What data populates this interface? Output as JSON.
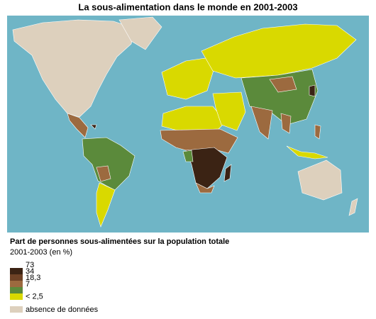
{
  "title": "La sous-alimentation dans le monde en 2001-2003",
  "legend": {
    "title": "Part de personnes sous-alimentées sur la population totale",
    "subtitle": "2001-2003 (en %)",
    "swatch_colors": [
      "#3b2314",
      "#6e4226",
      "#9c6a3f",
      "#5b8a3b",
      "#d9d900"
    ],
    "labels": [
      "73",
      "34",
      "18,3",
      "7",
      "< 2,5"
    ],
    "no_data": {
      "color": "#ddd0bd",
      "label": "absence de données"
    }
  }
}
